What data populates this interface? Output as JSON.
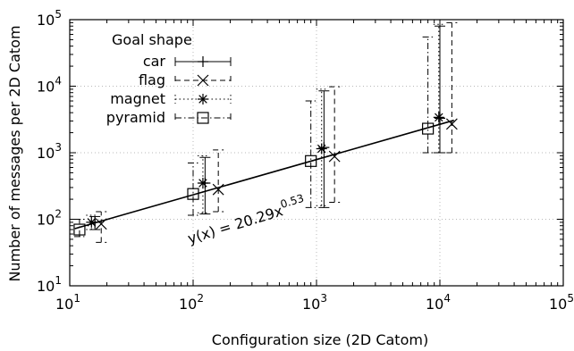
{
  "chart_data": {
    "type": "scatter",
    "title": "",
    "xlabel": "Configuration size (2D Catom)",
    "ylabel": "Number of messages per 2D Catom",
    "xscale": "log",
    "yscale": "log",
    "xlim": [
      10,
      100000
    ],
    "ylim": [
      10,
      100000
    ],
    "x_ticks": [
      {
        "base": "10",
        "exp": "1"
      },
      {
        "base": "10",
        "exp": "2"
      },
      {
        "base": "10",
        "exp": "3"
      },
      {
        "base": "10",
        "exp": "4"
      },
      {
        "base": "10",
        "exp": "5"
      }
    ],
    "y_ticks": [
      {
        "base": "10",
        "exp": "1"
      },
      {
        "base": "10",
        "exp": "2"
      },
      {
        "base": "10",
        "exp": "3"
      },
      {
        "base": "10",
        "exp": "4"
      },
      {
        "base": "10",
        "exp": "5"
      }
    ],
    "grid": true,
    "legend": {
      "title": "Goal shape",
      "placement": "top-left"
    },
    "series": [
      {
        "name": "car",
        "marker": "plus",
        "line_style": "solid",
        "points": [
          {
            "x": 16,
            "y": 90,
            "ylow": 70,
            "yhigh": 110
          },
          {
            "x": 125,
            "y": 350,
            "ylow": 120,
            "yhigh": 850
          },
          {
            "x": 1150,
            "y": 1200,
            "ylow": 150,
            "yhigh": 8500
          },
          {
            "x": 10000,
            "y": 3300,
            "ylow": 1000,
            "yhigh": 80000
          }
        ]
      },
      {
        "name": "flag",
        "marker": "x",
        "line_style": "dashed",
        "points": [
          {
            "x": 18,
            "y": 85,
            "ylow": 45,
            "yhigh": 130
          },
          {
            "x": 160,
            "y": 280,
            "ylow": 130,
            "yhigh": 1100
          },
          {
            "x": 1400,
            "y": 880,
            "ylow": 180,
            "yhigh": 9800
          },
          {
            "x": 12500,
            "y": 2700,
            "ylow": 1000,
            "yhigh": 90000
          }
        ]
      },
      {
        "name": "magnet",
        "marker": "star",
        "line_style": "dotted",
        "points": [
          {
            "x": 15,
            "y": 90,
            "ylow": 70,
            "yhigh": 115
          },
          {
            "x": 120,
            "y": 350,
            "ylow": 125,
            "yhigh": 900
          },
          {
            "x": 1100,
            "y": 1150,
            "ylow": 160,
            "yhigh": 9000
          },
          {
            "x": 9800,
            "y": 3400,
            "ylow": 1000,
            "yhigh": 85000
          }
        ]
      },
      {
        "name": "pyramid",
        "marker": "square",
        "line_style": "dashdot",
        "points": [
          {
            "x": 12,
            "y": 70,
            "ylow": 55,
            "yhigh": 100
          },
          {
            "x": 100,
            "y": 240,
            "ylow": 115,
            "yhigh": 700
          },
          {
            "x": 900,
            "y": 750,
            "ylow": 150,
            "yhigh": 6000
          },
          {
            "x": 8000,
            "y": 2300,
            "ylow": 1000,
            "yhigh": 55000
          }
        ]
      }
    ],
    "fit": {
      "label_prefix": "y(x) = 20.29x",
      "label_exp": "0.53",
      "coefficient": 20.29,
      "exponent": 0.53,
      "x_range": [
        11,
        13000
      ]
    }
  }
}
